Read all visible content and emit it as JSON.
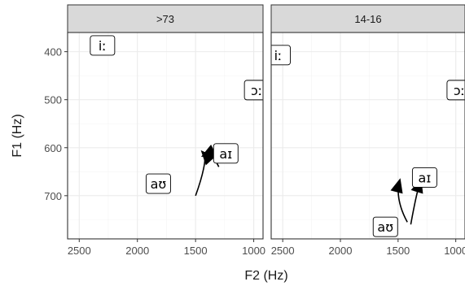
{
  "chart_data": {
    "type": "scatter",
    "subtype": "faceted vowel formant plot with diphthong trajectories",
    "xlabel": "F2 (Hz)",
    "ylabel": "F1 (Hz)",
    "x_reversed": true,
    "y_reversed": true,
    "xlim": [
      2600,
      920
    ],
    "ylim": [
      360,
      790
    ],
    "x_ticks": [
      2500,
      2000,
      1500,
      1000
    ],
    "x_tick_labels": [
      "2500",
      "2000",
      "1500",
      "1000"
    ],
    "y_ticks": [
      400,
      500,
      600,
      700
    ],
    "y_tick_labels": [
      "400",
      "500",
      "600",
      "700"
    ],
    "grid": true,
    "panels": [
      {
        "facet": ">73",
        "monophthongs": [
          {
            "label": "iː",
            "x": 2300,
            "y": 387
          },
          {
            "label": "ɔː",
            "x": 975,
            "y": 480
          }
        ],
        "diphthongs": [
          {
            "label_start": "aʊ",
            "start_x": 1820,
            "start_y": 675,
            "label_end": "aɪ",
            "end_x": 1240,
            "end_y": 612,
            "trajectories": [
              {
                "points": [
                  [
                    1500,
                    700
                  ],
                  [
                    1440,
                    660
                  ],
                  [
                    1400,
                    620
                  ],
                  [
                    1430,
                    612
                  ]
                ]
              },
              {
                "points": [
                  [
                    1300,
                    640
                  ],
                  [
                    1340,
                    620
                  ],
                  [
                    1380,
                    610
                  ],
                  [
                    1420,
                    615
                  ]
                ]
              }
            ]
          }
        ]
      },
      {
        "facet": "14-16",
        "monophthongs": [
          {
            "label": "iː",
            "x": 2540,
            "y": 407
          },
          {
            "label": "ɔː",
            "x": 970,
            "y": 480
          }
        ],
        "diphthongs": [
          {
            "label_start": "aʊ",
            "start_x": 1610,
            "start_y": 765,
            "label_end": "aɪ",
            "end_x": 1270,
            "end_y": 662,
            "trajectories": [
              {
                "points": [
                  [
                    1420,
                    755
                  ],
                  [
                    1500,
                    720
                  ],
                  [
                    1510,
                    690
                  ],
                  [
                    1490,
                    672
                  ]
                ]
              },
              {
                "points": [
                  [
                    1390,
                    760
                  ],
                  [
                    1360,
                    720
                  ],
                  [
                    1340,
                    695
                  ],
                  [
                    1310,
                    672
                  ]
                ]
              }
            ]
          }
        ]
      }
    ]
  }
}
